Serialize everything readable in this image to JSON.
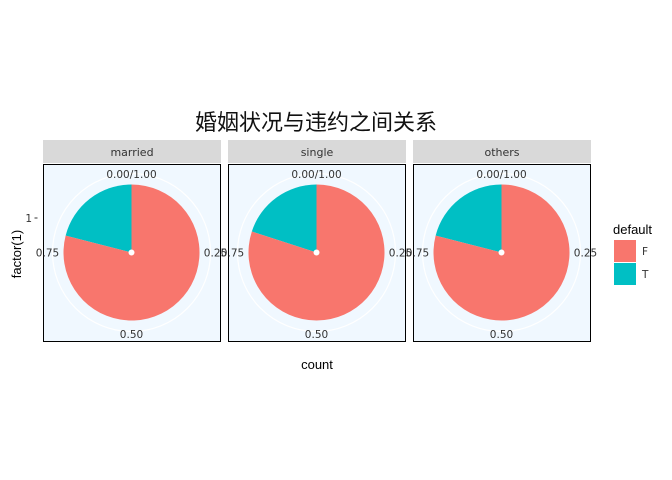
{
  "chart_data": {
    "type": "pie",
    "title": "婚姻状况与违约之间关系",
    "xlabel": "count",
    "ylabel": "factor(1)",
    "y_tick": "1",
    "theta_ticks": [
      "0.00/1.00",
      "0.25",
      "0.50",
      "0.75"
    ],
    "legend": {
      "title": "default",
      "position": "right",
      "entries": [
        {
          "label": "F",
          "color": "#F8766D"
        },
        {
          "label": "T",
          "color": "#00BFC4"
        }
      ]
    },
    "facets": [
      {
        "name": "married",
        "slices": [
          {
            "label": "F",
            "value": 0.79
          },
          {
            "label": "T",
            "value": 0.21
          }
        ]
      },
      {
        "name": "single",
        "slices": [
          {
            "label": "F",
            "value": 0.8
          },
          {
            "label": "T",
            "value": 0.2
          }
        ]
      },
      {
        "name": "others",
        "slices": [
          {
            "label": "F",
            "value": 0.79
          },
          {
            "label": "T",
            "value": 0.21
          }
        ]
      }
    ],
    "panel_background": "#F0F8FF",
    "strip_background": "#D9D9D9"
  }
}
